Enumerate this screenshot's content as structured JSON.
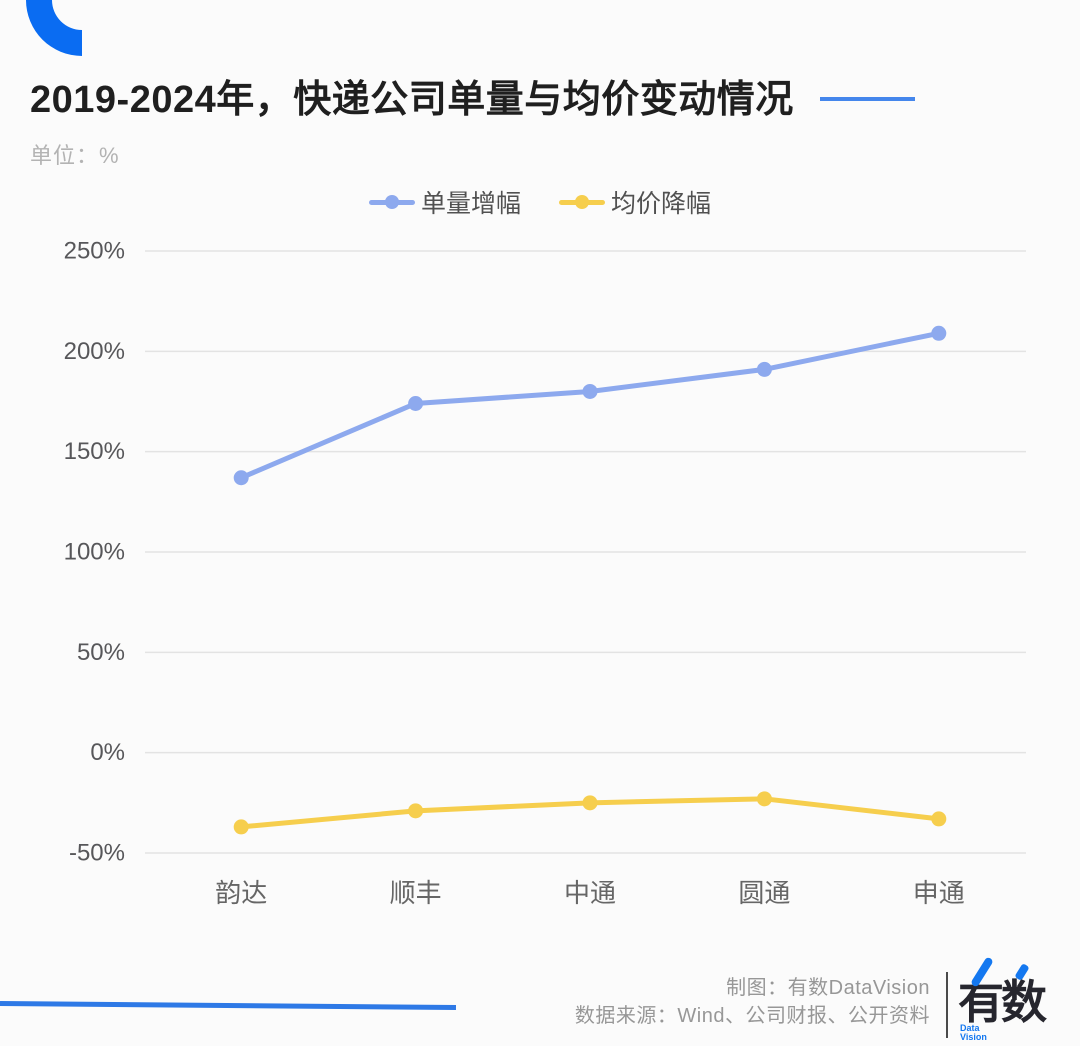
{
  "header": {
    "title": "2019-2024年，快递公司单量与均价变动情况",
    "unit": "单位：%"
  },
  "legend": {
    "items": [
      {
        "label": "单量增幅",
        "color": "#8DA9EE"
      },
      {
        "label": "均价降幅",
        "color": "#F6CE4D"
      }
    ]
  },
  "chart_data": {
    "type": "line",
    "title": "2019-2024年，快递公司单量与均价变动情况",
    "unit": "%",
    "categories": [
      "韵达",
      "顺丰",
      "中通",
      "圆通",
      "申通"
    ],
    "series": [
      {
        "name": "单量增幅",
        "color": "#8DA9EE",
        "values": [
          137,
          174,
          180,
          191,
          209
        ]
      },
      {
        "name": "均价降幅",
        "color": "#F6CE4D",
        "values": [
          -37,
          -29,
          -25,
          -23,
          -33
        ]
      }
    ],
    "ylim": [
      -50,
      250
    ],
    "yticks": [
      250,
      200,
      150,
      100,
      50,
      0,
      -50
    ],
    "ytick_suffix": "%",
    "grid": true,
    "grid_color": "#E3E3E3",
    "axis_text_color": "#57575A",
    "category_text_color": "#666666",
    "legend_position": "top"
  },
  "footer": {
    "credit": "制图：有数DataVision",
    "source": "数据来源：Wind、公司财报、公开资料",
    "brand": "有数",
    "brand_sub": "Data Vision"
  },
  "colors": {
    "accent_blue": "#0A6CF2",
    "title_dash": "#4486EC",
    "bottom_line": "#2E79E6",
    "background": "#FBFBFB"
  }
}
